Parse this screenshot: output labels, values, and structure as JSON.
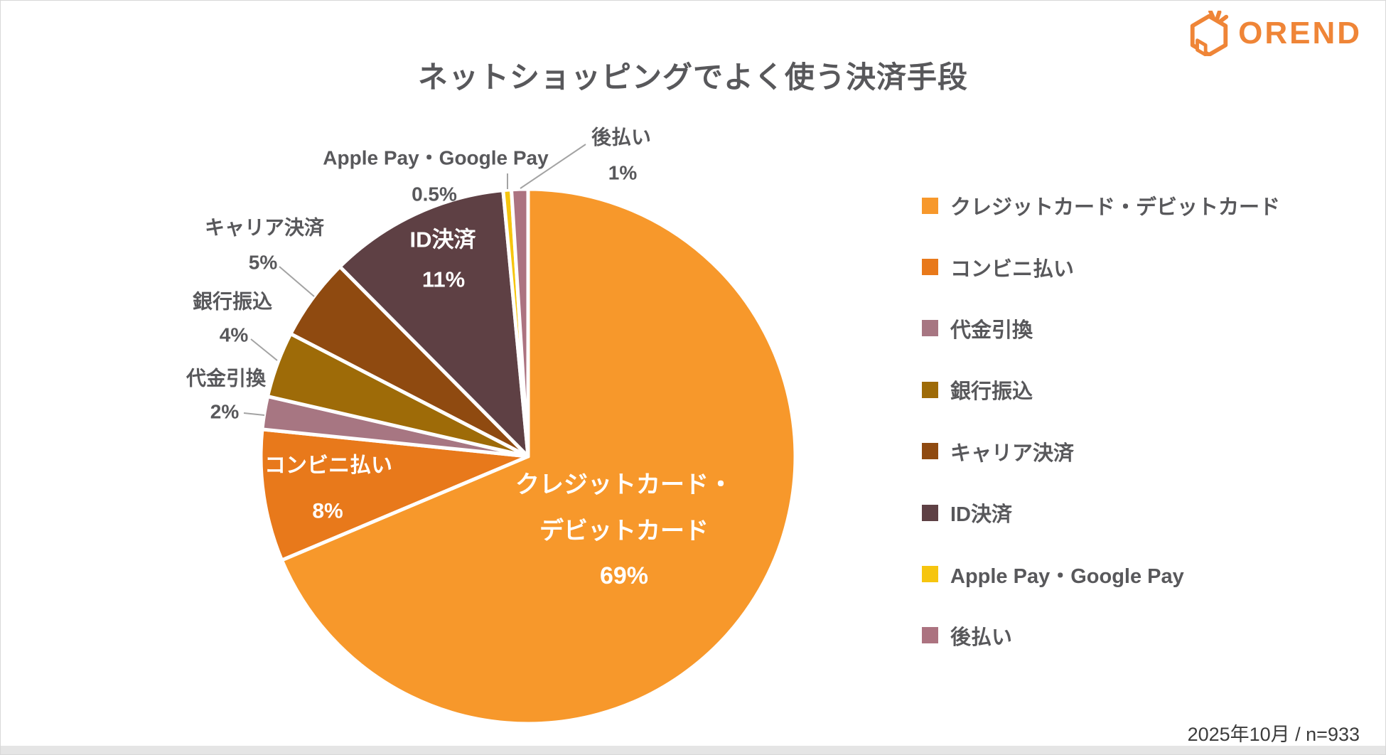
{
  "header": {
    "title": "ネットショッピングでよく使う決済手段",
    "logo_text": "OREND"
  },
  "chart_data": {
    "type": "pie",
    "title": "ネットショッピングでよく使う決済手段",
    "categories": [
      "クレジットカード・デビットカード",
      "コンビニ払い",
      "代金引換",
      "銀行振込",
      "キャリア決済",
      "ID決済",
      "Apple Pay・Google Pay",
      "後払い"
    ],
    "values": [
      69,
      8,
      2,
      4,
      5,
      11,
      0.5,
      1
    ],
    "unit": "%",
    "colors": [
      "#F7982B",
      "#E8791B",
      "#A77682",
      "#9E6B08",
      "#8F4A10",
      "#5E4044",
      "#F6C50F",
      "#AC7380"
    ],
    "start_angle": "12-oclock",
    "direction": "clockwise",
    "legend_position": "right",
    "callout_labels": [
      {
        "placement": "inside",
        "lines": [
          "クレジットカード・",
          "デビットカード",
          "69%"
        ]
      },
      {
        "placement": "inside",
        "lines": [
          "コンビニ払い",
          "8%"
        ]
      },
      {
        "placement": "outside",
        "lines": [
          "代金引換",
          "2%"
        ]
      },
      {
        "placement": "outside",
        "lines": [
          "銀行振込",
          "4%"
        ]
      },
      {
        "placement": "outside",
        "lines": [
          "キャリア決済",
          "5%"
        ]
      },
      {
        "placement": "inside",
        "lines": [
          "ID決済",
          "11%"
        ]
      },
      {
        "placement": "outside",
        "lines": [
          "Apple Pay・Google Pay",
          "0.5%"
        ]
      },
      {
        "placement": "outside",
        "lines": [
          "後払い",
          "1%"
        ]
      }
    ]
  },
  "legend": {
    "items": [
      {
        "label": "クレジットカード・デビットカード",
        "color": "#F7982B"
      },
      {
        "label": "コンビニ払い",
        "color": "#E8791B"
      },
      {
        "label": "代金引換",
        "color": "#A77682"
      },
      {
        "label": "銀行振込",
        "color": "#9E6B08"
      },
      {
        "label": "キャリア決済",
        "color": "#8F4A10"
      },
      {
        "label": "ID決済",
        "color": "#5E4044"
      },
      {
        "label": "Apple Pay・Google Pay",
        "color": "#F6C50F"
      },
      {
        "label": "後払い",
        "color": "#AC7380"
      }
    ]
  },
  "footer": {
    "source": "2025年10月 / n=933"
  }
}
